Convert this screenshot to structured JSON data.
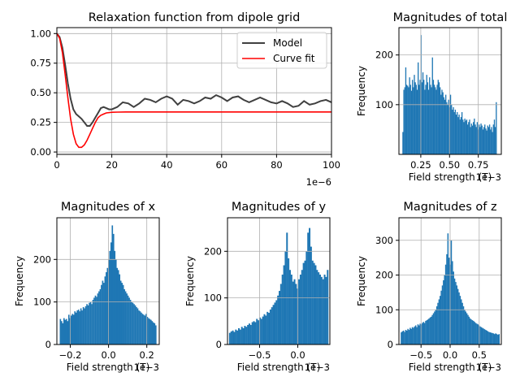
{
  "colors": {
    "model": "#404040",
    "fit": "#ff0000",
    "hist": "#1f77b4",
    "grid": "#b0b0b0"
  },
  "chart_data": [
    {
      "id": "relax",
      "type": "line",
      "title": "Relaxation function from dipole grid",
      "xlabel": "",
      "ylabel": "",
      "offset_text": "1e−6",
      "xlim": [
        0,
        100
      ],
      "ylim": [
        -0.02,
        1.05
      ],
      "xticks": [
        0,
        20,
        40,
        60,
        80,
        100
      ],
      "xtick_labels": [
        "0",
        "20",
        "40",
        "60",
        "80",
        "100"
      ],
      "yticks": [
        0.0,
        0.25,
        0.5,
        0.75,
        1.0
      ],
      "ytick_labels": [
        "0.00",
        "0.25",
        "0.50",
        "0.75",
        "1.00"
      ],
      "grid": true,
      "legend": {
        "position": "top-right",
        "entries": [
          "Model",
          "Curve fit"
        ]
      },
      "series": [
        {
          "name": "Model",
          "color": "#404040",
          "x": [
            0,
            1,
            2,
            3,
            4,
            5,
            6,
            7,
            8,
            9,
            10,
            11,
            12,
            13,
            14,
            15,
            16,
            17,
            18,
            19,
            20,
            22,
            24,
            26,
            28,
            30,
            32,
            34,
            36,
            38,
            40,
            42,
            44,
            46,
            48,
            50,
            52,
            54,
            56,
            58,
            60,
            62,
            64,
            66,
            68,
            70,
            72,
            74,
            76,
            78,
            80,
            82,
            84,
            86,
            88,
            90,
            92,
            94,
            96,
            98,
            100
          ],
          "y": [
            1.0,
            0.97,
            0.88,
            0.74,
            0.58,
            0.45,
            0.36,
            0.32,
            0.3,
            0.28,
            0.25,
            0.22,
            0.22,
            0.25,
            0.29,
            0.33,
            0.37,
            0.38,
            0.37,
            0.36,
            0.36,
            0.38,
            0.42,
            0.41,
            0.38,
            0.41,
            0.45,
            0.44,
            0.42,
            0.45,
            0.47,
            0.45,
            0.4,
            0.44,
            0.43,
            0.41,
            0.43,
            0.46,
            0.45,
            0.48,
            0.46,
            0.43,
            0.46,
            0.47,
            0.44,
            0.42,
            0.44,
            0.46,
            0.44,
            0.42,
            0.41,
            0.43,
            0.41,
            0.38,
            0.39,
            0.43,
            0.4,
            0.41,
            0.43,
            0.44,
            0.42
          ]
        },
        {
          "name": "Curve fit",
          "color": "#ff0000",
          "x": [
            0,
            1,
            2,
            3,
            4,
            5,
            6,
            7,
            8,
            9,
            10,
            11,
            12,
            13,
            14,
            15,
            16,
            17,
            18,
            20,
            22,
            25,
            30,
            40,
            60,
            80,
            100
          ],
          "y": [
            1.0,
            0.96,
            0.84,
            0.66,
            0.46,
            0.28,
            0.15,
            0.07,
            0.04,
            0.04,
            0.06,
            0.1,
            0.15,
            0.2,
            0.25,
            0.29,
            0.31,
            0.32,
            0.33,
            0.335,
            0.337,
            0.338,
            0.338,
            0.338,
            0.338,
            0.338,
            0.338
          ]
        }
      ]
    },
    {
      "id": "total",
      "type": "bar",
      "title": "Magnitudes of total",
      "xlabel": "Field strength (T)",
      "ylabel": "Frequency",
      "offset_text": "1e−3",
      "xlim": [
        0.06,
        0.95
      ],
      "ylim": [
        0,
        255
      ],
      "xticks": [
        0.25,
        0.5,
        0.75
      ],
      "xtick_labels": [
        "0.25",
        "0.50",
        "0.75"
      ],
      "yticks": [
        100,
        200
      ],
      "ytick_labels": [
        "100",
        "200"
      ],
      "grid": true,
      "bin_range": [
        0.09,
        0.91
      ],
      "values": [
        45,
        130,
        135,
        175,
        140,
        138,
        135,
        155,
        140,
        128,
        150,
        135,
        160,
        145,
        140,
        130,
        185,
        140,
        150,
        240,
        145,
        165,
        150,
        130,
        140,
        160,
        145,
        130,
        155,
        140,
        135,
        195,
        150,
        140,
        135,
        130,
        140,
        150,
        145,
        135,
        120,
        130,
        125,
        115,
        110,
        120,
        105,
        100,
        110,
        95,
        120,
        100,
        90,
        95,
        85,
        90,
        80,
        85,
        75,
        80,
        70,
        75,
        85,
        70,
        65,
        72,
        68,
        70,
        60,
        65,
        70,
        55,
        62,
        58,
        65,
        72,
        60,
        55,
        65,
        50,
        60,
        55,
        62,
        58,
        50,
        55,
        60,
        52,
        48,
        58,
        55,
        60,
        50,
        55,
        45,
        60,
        70,
        55,
        105
      ]
    },
    {
      "id": "x",
      "type": "bar",
      "title": "Magnitudes of x",
      "xlabel": "Field strength (T)",
      "ylabel": "Frequency",
      "offset_text": "1e−3",
      "xlim": [
        -0.27,
        0.265
      ],
      "ylim": [
        0,
        298
      ],
      "xticks": [
        -0.2,
        0.0,
        0.2
      ],
      "xtick_labels": [
        "−0.2",
        "0.0",
        "0.2"
      ],
      "yticks": [
        0,
        100,
        200
      ],
      "ytick_labels": [
        "0",
        "100",
        "200"
      ],
      "grid": true,
      "bin_range": [
        -0.255,
        0.25
      ],
      "values": [
        60,
        55,
        50,
        62,
        58,
        60,
        55,
        70,
        62,
        68,
        72,
        70,
        78,
        75,
        80,
        82,
        78,
        85,
        80,
        88,
        85,
        90,
        95,
        92,
        98,
        100,
        95,
        105,
        110,
        115,
        112,
        120,
        125,
        130,
        140,
        150,
        145,
        160,
        170,
        180,
        200,
        220,
        240,
        280,
        260,
        220,
        200,
        180,
        175,
        165,
        150,
        145,
        140,
        130,
        125,
        120,
        115,
        110,
        105,
        100,
        98,
        95,
        92,
        88,
        85,
        80,
        78,
        75,
        72,
        70,
        68,
        72,
        65,
        62,
        60,
        58,
        55,
        52,
        50,
        45
      ]
    },
    {
      "id": "y",
      "type": "bar",
      "title": "Magnitudes of y",
      "xlabel": "Field strength (T)",
      "ylabel": "Frequency",
      "offset_text": "1e−3",
      "xlim": [
        -0.92,
        0.42
      ],
      "ylim": [
        0,
        272
      ],
      "xticks": [
        -0.5,
        0.0
      ],
      "xtick_labels": [
        "−0.5",
        "0.0"
      ],
      "yticks": [
        0,
        100,
        200
      ],
      "ytick_labels": [
        "0",
        "100",
        "200"
      ],
      "grid": true,
      "bin_range": [
        -0.9,
        0.4
      ],
      "values": [
        25,
        28,
        30,
        27,
        32,
        30,
        35,
        32,
        38,
        35,
        40,
        38,
        42,
        45,
        42,
        48,
        50,
        48,
        55,
        52,
        58,
        55,
        60,
        65,
        62,
        70,
        68,
        75,
        80,
        85,
        90,
        95,
        105,
        115,
        130,
        150,
        170,
        200,
        240,
        185,
        160,
        150,
        135,
        140,
        130,
        120,
        140,
        150,
        160,
        175,
        180,
        200,
        240,
        250,
        210,
        180,
        175,
        170,
        160,
        155,
        150,
        145,
        140,
        150,
        145,
        160
      ]
    },
    {
      "id": "z",
      "type": "bar",
      "title": "Magnitudes of z",
      "xlabel": "Field strength (T)",
      "ylabel": "Frequency",
      "offset_text": "1e−3",
      "xlim": [
        -0.88,
        0.88
      ],
      "ylim": [
        0,
        365
      ],
      "xticks": [
        -0.5,
        0.0,
        0.5
      ],
      "xtick_labels": [
        "−0.5",
        "0.0",
        "0.5"
      ],
      "yticks": [
        0,
        100,
        200,
        300
      ],
      "ytick_labels": [
        "0",
        "100",
        "200",
        "300"
      ],
      "grid": true,
      "bin_range": [
        -0.85,
        0.85
      ],
      "values": [
        35,
        38,
        40,
        36,
        42,
        40,
        45,
        42,
        48,
        45,
        50,
        48,
        52,
        55,
        50,
        58,
        55,
        60,
        58,
        62,
        65,
        62,
        68,
        70,
        72,
        75,
        78,
        80,
        85,
        90,
        95,
        100,
        110,
        120,
        130,
        140,
        155,
        170,
        185,
        200,
        230,
        260,
        320,
        250,
        230,
        300,
        240,
        210,
        190,
        180,
        170,
        160,
        150,
        140,
        130,
        120,
        110,
        100,
        95,
        90,
        85,
        80,
        75,
        72,
        70,
        68,
        65,
        62,
        60,
        58,
        55,
        52,
        50,
        48,
        46,
        44,
        42,
        40,
        38,
        36,
        35,
        34,
        33,
        32,
        30,
        32,
        30,
        28,
        30
      ]
    }
  ]
}
